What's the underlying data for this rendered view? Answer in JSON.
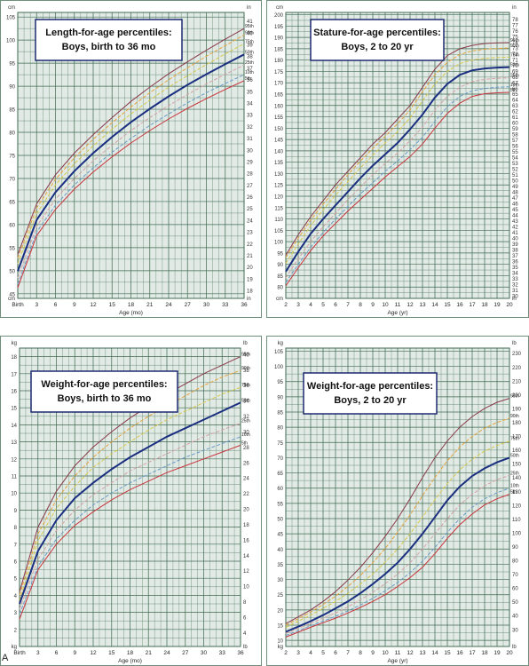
{
  "figure_label": "A",
  "colors": {
    "grid": "#3f6b52",
    "paper": "#e1eae5",
    "p95": "#8a3a4a",
    "p90": "#e6a23a",
    "p75": "#d8c84a",
    "p50": "#1b2f80",
    "p25": "#d4a0a6",
    "p10": "#6a9ac8",
    "p5": "#c8343c"
  },
  "chart_data": [
    {
      "type": "line",
      "title": "Length-for-age percentiles:",
      "subtitle": "Boys, birth to 36 mo",
      "xlabel": "Age (mo)",
      "left_unit": "cm",
      "right_unit": "in",
      "x_ticks": [
        "Birth",
        "3",
        "6",
        "9",
        "12",
        "15",
        "18",
        "21",
        "24",
        "27",
        "30",
        "33",
        "36"
      ],
      "x_range": [
        0,
        36
      ],
      "y_range": [
        44,
        106
      ],
      "left_ticks": [
        45,
        50,
        55,
        60,
        65,
        70,
        75,
        80,
        85,
        90,
        95,
        100,
        105
      ],
      "right_ticks": [
        17,
        18,
        19,
        20,
        21,
        22,
        23,
        24,
        25,
        26,
        27,
        28,
        29,
        30,
        31,
        32,
        33,
        34,
        35,
        36,
        37,
        38,
        39,
        40,
        41,
        42
      ],
      "right_scale": 2.54,
      "x": [
        0,
        3,
        6,
        9,
        12,
        15,
        18,
        21,
        24,
        27,
        30,
        33,
        36
      ],
      "series": [
        {
          "name": "95th",
          "color_key": "p95",
          "values": [
            53.5,
            64.5,
            70.8,
            75.5,
            79.5,
            83.2,
            86.7,
            89.8,
            92.7,
            95.3,
            97.8,
            100.2,
            102.5
          ]
        },
        {
          "name": "90th",
          "color_key": "p90",
          "values": [
            52.7,
            63.6,
            69.8,
            74.5,
            78.5,
            82.1,
            85.5,
            88.6,
            91.4,
            94.0,
            96.5,
            98.8,
            101.1
          ]
        },
        {
          "name": "75th",
          "color_key": "p75",
          "values": [
            51.5,
            62.4,
            68.6,
            73.2,
            77.1,
            80.7,
            84.0,
            87.0,
            89.8,
            92.3,
            94.7,
            97.0,
            99.2
          ]
        },
        {
          "name": "50th",
          "color_key": "p50",
          "values": [
            49.9,
            61.0,
            67.0,
            71.6,
            75.5,
            79.0,
            82.2,
            85.1,
            87.8,
            90.3,
            92.6,
            94.8,
            96.9
          ]
        },
        {
          "name": "25th",
          "color_key": "p25",
          "values": [
            48.4,
            59.6,
            65.5,
            70.0,
            73.8,
            77.2,
            80.4,
            83.2,
            85.8,
            88.2,
            90.5,
            92.6,
            94.6
          ]
        },
        {
          "name": "10th",
          "color_key": "p10",
          "values": [
            47.1,
            58.4,
            64.2,
            68.6,
            72.3,
            75.7,
            78.7,
            81.5,
            84.0,
            86.4,
            88.6,
            90.6,
            92.5
          ]
        },
        {
          "name": "5th",
          "color_key": "p5",
          "values": [
            46.3,
            57.6,
            63.3,
            67.7,
            71.4,
            74.7,
            77.7,
            80.4,
            82.9,
            85.2,
            87.3,
            89.3,
            91.2
          ]
        }
      ],
      "label_x": 36
    },
    {
      "type": "line",
      "title": "Stature-for-age percentiles:",
      "subtitle": "Boys, 2 to 20 yr",
      "xlabel": "Age (yr)",
      "left_unit": "cm",
      "right_unit": "in",
      "x_ticks": [
        "2",
        "3",
        "4",
        "5",
        "6",
        "7",
        "8",
        "9",
        "10",
        "11",
        "12",
        "13",
        "14",
        "15",
        "16",
        "17",
        "18",
        "19",
        "20"
      ],
      "x_range": [
        2,
        20
      ],
      "y_range": [
        75,
        201
      ],
      "left_ticks": [
        80,
        85,
        90,
        95,
        100,
        105,
        110,
        115,
        120,
        125,
        130,
        135,
        140,
        145,
        150,
        155,
        160,
        165,
        170,
        175,
        180,
        185,
        190,
        195,
        200
      ],
      "right_ticks": [
        30,
        31,
        32,
        33,
        34,
        35,
        36,
        37,
        38,
        39,
        40,
        41,
        42,
        43,
        44,
        45,
        46,
        47,
        48,
        49,
        50,
        51,
        52,
        53,
        54,
        55,
        56,
        57,
        58,
        59,
        60,
        61,
        62,
        63,
        64,
        65,
        66,
        67,
        68,
        69,
        70,
        71,
        72,
        73,
        74,
        75,
        76,
        77,
        78
      ],
      "right_scale": 2.54,
      "x": [
        2,
        3,
        4,
        5,
        6,
        7,
        8,
        9,
        10,
        11,
        12,
        13,
        14,
        15,
        16,
        17,
        18,
        19,
        20
      ],
      "series": [
        {
          "name": "95th",
          "color_key": "p95",
          "values": [
            94,
            103,
            111,
            118,
            125,
            131,
            137,
            143,
            148,
            154,
            160,
            168,
            176,
            182,
            185,
            186.5,
            187.3,
            187.6,
            187.7
          ]
        },
        {
          "name": "90th",
          "color_key": "p90",
          "values": [
            93,
            101.5,
            109.5,
            116.5,
            123,
            129.5,
            135.5,
            141,
            146.5,
            152,
            158,
            166,
            173.5,
            179,
            182.5,
            184,
            184.8,
            185.1,
            185.3
          ]
        },
        {
          "name": "75th",
          "color_key": "p75",
          "values": [
            90.5,
            99,
            107,
            114,
            120.5,
            126.5,
            132.5,
            138,
            143.5,
            148.5,
            154.5,
            162,
            169.5,
            175,
            178.5,
            180,
            180.8,
            181.1,
            181.3
          ]
        },
        {
          "name": "50th",
          "color_key": "p50",
          "values": [
            86.8,
            95.5,
            103.5,
            110,
            116,
            122,
            128,
            133.5,
            138.5,
            143.5,
            149.5,
            156,
            163.5,
            169.5,
            173.5,
            175.5,
            176.3,
            176.7,
            176.9
          ]
        },
        {
          "name": "25th",
          "color_key": "p25",
          "values": [
            84,
            92.5,
            100,
            106.5,
            112.5,
            118.5,
            124,
            129.5,
            134.5,
            139,
            144.5,
            150.5,
            158,
            164,
            168,
            170.5,
            171.5,
            172,
            172.2
          ]
        },
        {
          "name": "10th",
          "color_key": "p10",
          "values": [
            82,
            90,
            97.5,
            104,
            110,
            115.5,
            121,
            126,
            131,
            135.5,
            140.5,
            146,
            153,
            159.5,
            164,
            166.5,
            167.5,
            168,
            168.2
          ]
        },
        {
          "name": "5th",
          "color_key": "p5",
          "values": [
            80.5,
            88.5,
            96,
            102.5,
            108,
            113.5,
            118.5,
            123.5,
            128.5,
            133,
            137.5,
            143,
            150,
            156.5,
            161,
            164,
            165.2,
            165.6,
            165.8
          ]
        }
      ],
      "label_x": 20
    },
    {
      "type": "line",
      "title": "Weight-for-age percentiles:",
      "subtitle": "Boys, birth to 36 mo",
      "xlabel": "Age (mo)",
      "left_unit": "kg",
      "right_unit": "lb",
      "x_ticks": [
        "Birth",
        "3",
        "6",
        "9",
        "12",
        "15",
        "18",
        "21",
        "24",
        "27",
        "30",
        "33",
        "36"
      ],
      "x_range": [
        0,
        36
      ],
      "y_range": [
        1,
        18.5
      ],
      "left_ticks": [
        2,
        3,
        4,
        5,
        6,
        7,
        8,
        9,
        10,
        11,
        12,
        13,
        14,
        15,
        16,
        17,
        18
      ],
      "right_ticks": [
        4,
        6,
        8,
        10,
        12,
        14,
        16,
        18,
        20,
        22,
        24,
        26,
        28,
        30,
        32,
        34,
        36,
        38,
        40
      ],
      "right_scale": 0.45359,
      "x": [
        0,
        3,
        6,
        9,
        12,
        15,
        18,
        21,
        24,
        27,
        30,
        33,
        36
      ],
      "series": [
        {
          "name": "95th",
          "color_key": "p95",
          "values": [
            4.2,
            8.0,
            10.1,
            11.6,
            12.7,
            13.6,
            14.4,
            15.1,
            15.8,
            16.4,
            17.0,
            17.5,
            18.0
          ]
        },
        {
          "name": "90th",
          "color_key": "p90",
          "values": [
            4.0,
            7.6,
            9.6,
            11.0,
            12.1,
            13.0,
            13.8,
            14.5,
            15.1,
            15.7,
            16.3,
            16.8,
            17.2
          ]
        },
        {
          "name": "75th",
          "color_key": "p75",
          "values": [
            3.7,
            7.2,
            9.1,
            10.4,
            11.5,
            12.3,
            13.0,
            13.7,
            14.3,
            14.8,
            15.3,
            15.8,
            16.2
          ]
        },
        {
          "name": "50th",
          "color_key": "p50",
          "values": [
            3.5,
            6.6,
            8.4,
            9.7,
            10.6,
            11.4,
            12.1,
            12.7,
            13.3,
            13.8,
            14.3,
            14.8,
            15.3
          ]
        },
        {
          "name": "25th",
          "color_key": "p25",
          "values": [
            3.2,
            6.1,
            7.8,
            9.0,
            9.9,
            10.6,
            11.3,
            11.8,
            12.3,
            12.8,
            13.3,
            13.7,
            14.1
          ]
        },
        {
          "name": "10th",
          "color_key": "p10",
          "values": [
            2.9,
            5.7,
            7.3,
            8.4,
            9.3,
            10.0,
            10.6,
            11.1,
            11.6,
            12.1,
            12.5,
            12.9,
            13.3
          ]
        },
        {
          "name": "5th",
          "color_key": "p5",
          "values": [
            2.6,
            5.5,
            7.0,
            8.1,
            8.9,
            9.6,
            10.2,
            10.7,
            11.2,
            11.6,
            12.0,
            12.4,
            12.8
          ]
        }
      ],
      "label_x": 36
    },
    {
      "type": "line",
      "title": "Weight-for-age percentiles:",
      "subtitle": "Boys, 2 to 20 yr",
      "xlabel": "Age (yr)",
      "left_unit": "kg",
      "right_unit": "lb",
      "x_ticks": [
        "2",
        "3",
        "4",
        "5",
        "6",
        "7",
        "8",
        "9",
        "10",
        "11",
        "12",
        "13",
        "14",
        "15",
        "16",
        "17",
        "18",
        "19",
        "20"
      ],
      "x_range": [
        2,
        20
      ],
      "y_range": [
        8,
        106
      ],
      "left_ticks": [
        10,
        15,
        20,
        25,
        30,
        35,
        40,
        45,
        50,
        55,
        60,
        65,
        70,
        75,
        80,
        85,
        90,
        95,
        100,
        105
      ],
      "right_ticks": [
        30,
        40,
        50,
        60,
        70,
        80,
        90,
        100,
        110,
        120,
        130,
        140,
        150,
        160,
        170,
        180,
        190,
        200,
        210,
        220,
        230
      ],
      "right_scale": 0.45359,
      "x": [
        2,
        3,
        4,
        5,
        6,
        7,
        8,
        9,
        10,
        11,
        12,
        13,
        14,
        15,
        16,
        17,
        18,
        19,
        20
      ],
      "series": [
        {
          "name": "95th",
          "color_key": "p95",
          "values": [
            15.5,
            17.7,
            20,
            22.8,
            26,
            29.8,
            34,
            38.8,
            44.2,
            50,
            56.5,
            63.5,
            70,
            75.5,
            80,
            83.5,
            86.2,
            88.2,
            89.5
          ]
        },
        {
          "name": "90th",
          "color_key": "p90",
          "values": [
            15,
            17.1,
            19.3,
            21.8,
            24.5,
            27.7,
            31.3,
            35.5,
            40.2,
            45.5,
            51.2,
            57.5,
            63.5,
            69,
            73.5,
            77,
            79.7,
            81.6,
            83
          ]
        },
        {
          "name": "75th",
          "color_key": "p75",
          "values": [
            14.2,
            16.3,
            18.3,
            20.5,
            22.8,
            25.5,
            28.5,
            31.8,
            35.7,
            40,
            45,
            50.5,
            56.2,
            61.5,
            66,
            69.5,
            72.2,
            74,
            75.5
          ]
        },
        {
          "name": "50th",
          "color_key": "p50",
          "values": [
            12.8,
            14.5,
            16.3,
            18.3,
            20.5,
            22.8,
            25.5,
            28.5,
            31.8,
            35.5,
            40,
            45,
            50.5,
            56,
            60.5,
            64,
            66.5,
            68.5,
            70
          ]
        },
        {
          "name": "25th",
          "color_key": "p25",
          "values": [
            12.3,
            14,
            15.6,
            17.3,
            19,
            21,
            23.3,
            25.8,
            28.6,
            31.8,
            35.5,
            40,
            45,
            50,
            54.5,
            58,
            60.8,
            62.8,
            64.2
          ]
        },
        {
          "name": "10th",
          "color_key": "p10",
          "values": [
            11.6,
            13.2,
            14.8,
            16.3,
            17.9,
            19.7,
            21.6,
            23.8,
            26.3,
            29,
            32.2,
            36,
            40.5,
            45.5,
            50,
            53.7,
            56.5,
            58.5,
            60
          ]
        },
        {
          "name": "5th",
          "color_key": "p5",
          "values": [
            11.1,
            12.7,
            14.3,
            15.8,
            17.3,
            19,
            20.8,
            22.8,
            25,
            27.7,
            30.6,
            34,
            38.5,
            43.5,
            48,
            51.5,
            54.5,
            56.5,
            58
          ]
        }
      ],
      "label_x": 20
    }
  ]
}
